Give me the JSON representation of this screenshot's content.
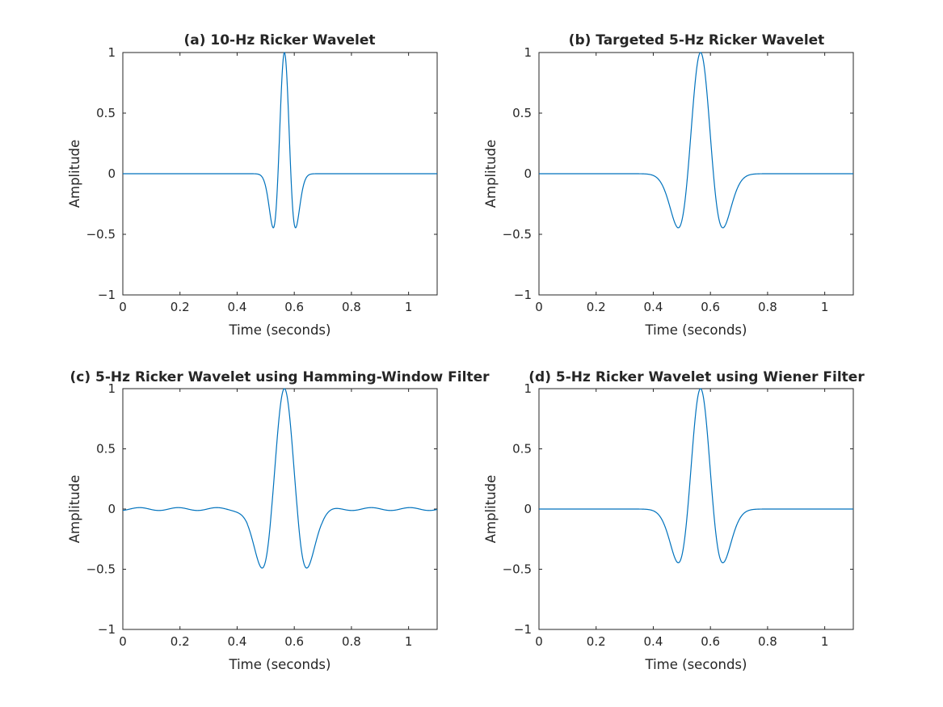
{
  "colors": {
    "line": "#0072bd",
    "axes": "#262626",
    "background": "#ffffff"
  },
  "chart_data": [
    {
      "type": "line",
      "title": "(a) 10-Hz Ricker Wavelet",
      "xlabel": "Time (seconds)",
      "ylabel": "Amplitude",
      "xlim": [
        0,
        1.1
      ],
      "ylim": [
        -1,
        1
      ],
      "xticks": [
        0,
        0.2,
        0.4,
        0.6,
        0.8,
        1
      ],
      "xtick_labels": [
        "0",
        "0.2",
        "0.4",
        "0.6",
        "0.8",
        "1"
      ],
      "yticks": [
        -1,
        -0.5,
        0,
        0.5,
        1
      ],
      "ytick_labels": [
        "−1",
        "−0.5",
        "0",
        "0.5",
        "1"
      ],
      "grid": false,
      "series": [
        {
          "model": "ricker",
          "freq_hz": 10,
          "center": 0.5655,
          "peak": 1.0,
          "ripple": 0
        }
      ]
    },
    {
      "type": "line",
      "title": "(b) Targeted 5-Hz Ricker Wavelet",
      "xlabel": "Time (seconds)",
      "ylabel": "Amplitude",
      "xlim": [
        0,
        1.1
      ],
      "ylim": [
        -1,
        1
      ],
      "xticks": [
        0,
        0.2,
        0.4,
        0.6,
        0.8,
        1
      ],
      "xtick_labels": [
        "0",
        "0.2",
        "0.4",
        "0.6",
        "0.8",
        "1"
      ],
      "yticks": [
        -1,
        -0.5,
        0,
        0.5,
        1
      ],
      "ytick_labels": [
        "−1",
        "−0.5",
        "0",
        "0.5",
        "1"
      ],
      "grid": false,
      "series": [
        {
          "model": "ricker",
          "freq_hz": 5,
          "center": 0.5655,
          "peak": 1.0,
          "ripple": 0
        }
      ]
    },
    {
      "type": "line",
      "title": "(c) 5-Hz Ricker Wavelet using Hamming-Window Filter",
      "xlabel": "Time (seconds)",
      "ylabel": "Amplitude",
      "xlim": [
        0,
        1.1
      ],
      "ylim": [
        -1,
        1
      ],
      "xticks": [
        0,
        0.2,
        0.4,
        0.6,
        0.8,
        1
      ],
      "xtick_labels": [
        "0",
        "0.2",
        "0.4",
        "0.6",
        "0.8",
        "1"
      ],
      "yticks": [
        -1,
        -0.5,
        0,
        0.5,
        1
      ],
      "ytick_labels": [
        "−1",
        "−0.5",
        "0",
        "0.5",
        "1"
      ],
      "grid": false,
      "series": [
        {
          "model": "ricker",
          "freq_hz": 5,
          "center": 0.5655,
          "peak": 1.0,
          "ripple": 0.012,
          "trough": -0.49
        }
      ]
    },
    {
      "type": "line",
      "title": "(d) 5-Hz Ricker Wavelet using Wiener Filter",
      "xlabel": "Time (seconds)",
      "ylabel": "Amplitude",
      "xlim": [
        0,
        1.1
      ],
      "ylim": [
        -1,
        1
      ],
      "xticks": [
        0,
        0.2,
        0.4,
        0.6,
        0.8,
        1
      ],
      "xtick_labels": [
        "0",
        "0.2",
        "0.4",
        "0.6",
        "0.8",
        "1"
      ],
      "yticks": [
        -1,
        -0.5,
        0,
        0.5,
        1
      ],
      "ytick_labels": [
        "−1",
        "−0.5",
        "0",
        "0.5",
        "1"
      ],
      "grid": false,
      "series": [
        {
          "model": "ricker",
          "freq_hz": 5,
          "center": 0.5655,
          "peak": 1.0,
          "ripple": 0
        }
      ]
    }
  ]
}
